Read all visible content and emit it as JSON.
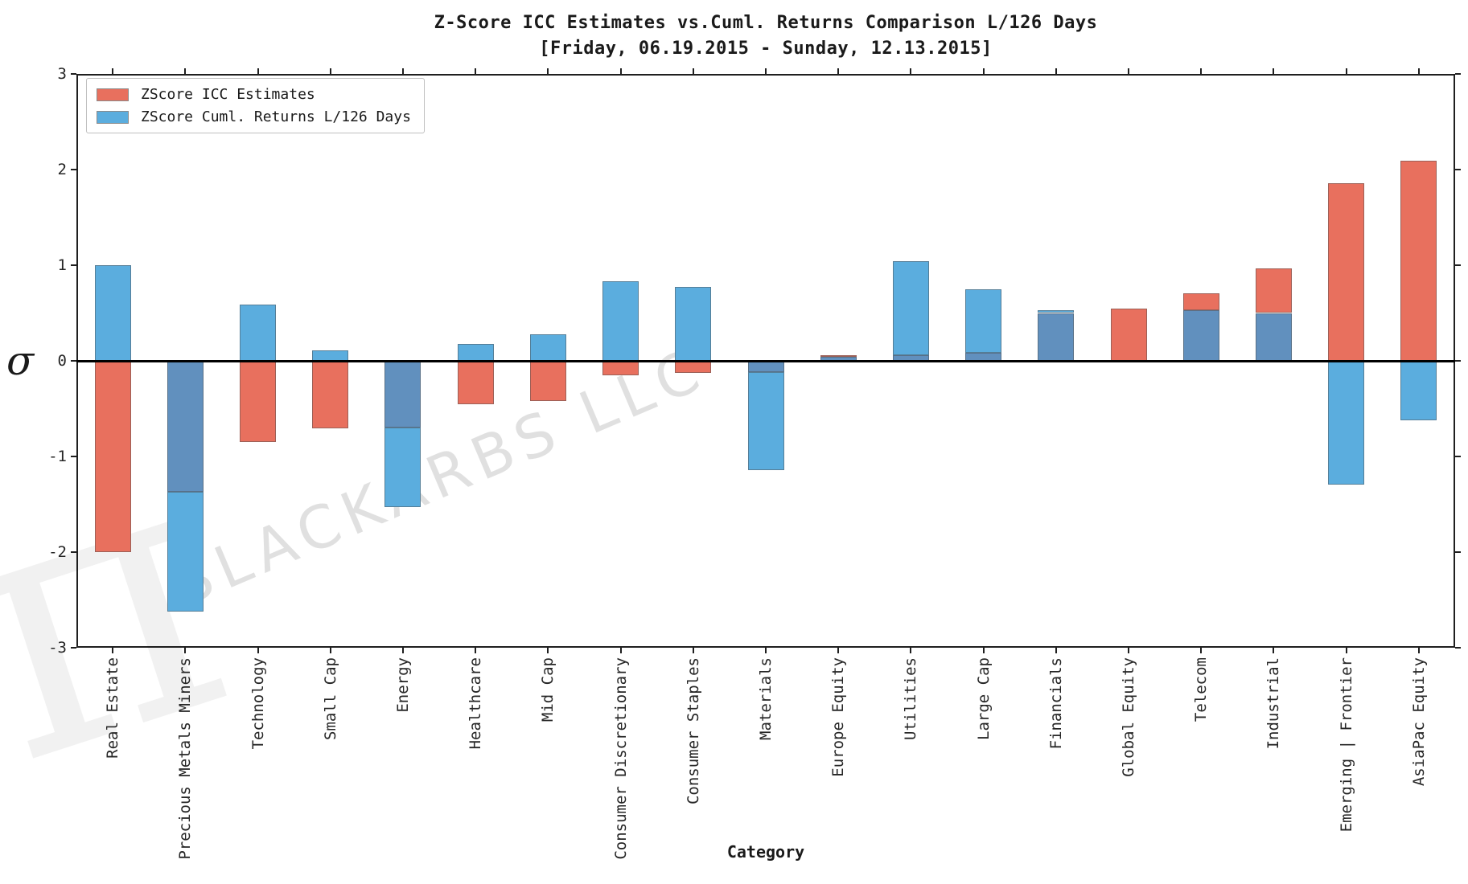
{
  "chart_data": {
    "type": "bar",
    "title": "Z-Score ICC Estimates vs.Cuml. Returns Comparison L/126 Days",
    "subtitle": "[Friday, 06.19.2015 - Sunday, 12.13.2015]",
    "xlabel": "Category",
    "ylabel": "σ",
    "ylim": [
      -3,
      3
    ],
    "yticks": [
      -3,
      -2,
      -1,
      0,
      1,
      2,
      3
    ],
    "grid": false,
    "zero_line": true,
    "legend_position": "upper left",
    "categories": [
      "Real Estate",
      "Precious Metals Miners",
      "Technology",
      "Small Cap",
      "Energy",
      "Healthcare",
      "Mid Cap",
      "Consumer Discretionary",
      "Consumer Staples",
      "Materials",
      "Europe Equity",
      "Utilities",
      "Large Cap",
      "Financials",
      "Global Equity",
      "Telecom",
      "Industrial",
      "Emerging | Frontier",
      "AsiaPac Equity"
    ],
    "series": [
      {
        "name": "ZScore ICC Estimates",
        "color": "#e8705e",
        "values": [
          -2.0,
          -1.37,
          -0.85,
          -0.71,
          -0.7,
          -0.45,
          -0.42,
          -0.15,
          -0.13,
          -0.12,
          0.06,
          0.06,
          0.08,
          0.5,
          0.55,
          0.71,
          0.97,
          1.86,
          2.09
        ]
      },
      {
        "name": "ZScore Cuml. Returns L/126 Days",
        "color": "#5badde",
        "values": [
          1.0,
          -2.62,
          0.59,
          0.11,
          -1.53,
          0.18,
          0.28,
          0.83,
          0.77,
          -1.14,
          0.04,
          1.04,
          0.75,
          0.53,
          0.0,
          0.53,
          0.5,
          -1.29,
          -0.62
        ]
      }
    ],
    "overlap_color": "#6190be",
    "bar_edge_color": "rgba(80,80,80,0.5)"
  },
  "watermark": {
    "symbol": "π",
    "text": "BLACKARBS LLC"
  }
}
